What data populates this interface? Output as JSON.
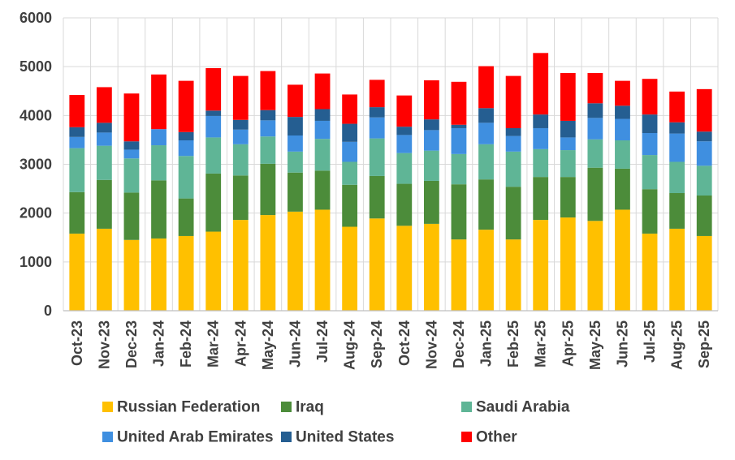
{
  "chart_data": {
    "type": "bar",
    "stacked": true,
    "title": "",
    "xlabel": "",
    "ylabel": "",
    "ylim": [
      0,
      6000
    ],
    "yticks": [
      0,
      1000,
      2000,
      3000,
      4000,
      5000,
      6000
    ],
    "grid": true,
    "legend_position": "bottom",
    "categories": [
      "Oct-23",
      "Nov-23",
      "Dec-23",
      "Jan-24",
      "Feb-24",
      "Mar-24",
      "Apr-24",
      "May-24",
      "Jun-24",
      "Jul-24",
      "Aug-24",
      "Sep-24",
      "Oct-24",
      "Nov-24",
      "Dec-24",
      "Jan-25",
      "Feb-25",
      "Mar-25",
      "Apr-25",
      "May-25",
      "Jun-25",
      "Jul-25",
      "Aug-25",
      "Sep-25"
    ],
    "series": [
      {
        "name": "Russian Federation",
        "color": "#FFC000",
        "values": [
          1580,
          1680,
          1450,
          1480,
          1530,
          1620,
          1860,
          1960,
          2030,
          2070,
          1720,
          1890,
          1740,
          1780,
          1460,
          1660,
          1460,
          1860,
          1910,
          1840,
          2070,
          1580,
          1680,
          1530
        ]
      },
      {
        "name": "Iraq",
        "color": "#4C8C3A",
        "values": [
          850,
          1000,
          970,
          1190,
          770,
          1190,
          910,
          1050,
          800,
          800,
          860,
          870,
          860,
          880,
          1130,
          1030,
          1080,
          880,
          830,
          1090,
          840,
          910,
          730,
          830
        ]
      },
      {
        "name": "Saudi Arabia",
        "color": "#5FB596",
        "values": [
          900,
          700,
          700,
          720,
          870,
          740,
          640,
          560,
          430,
          650,
          470,
          770,
          630,
          620,
          620,
          720,
          720,
          570,
          550,
          580,
          580,
          700,
          640,
          610
        ]
      },
      {
        "name": "United Arab Emirates",
        "color": "#3F8FE0",
        "values": [
          230,
          270,
          180,
          330,
          320,
          440,
          300,
          330,
          330,
          370,
          410,
          430,
          370,
          420,
          530,
          440,
          320,
          430,
          260,
          440,
          440,
          450,
          580,
          500
        ]
      },
      {
        "name": "United States",
        "color": "#255E91",
        "values": [
          200,
          200,
          170,
          0,
          170,
          110,
          200,
          210,
          380,
          240,
          370,
          210,
          170,
          220,
          70,
          300,
          160,
          280,
          340,
          300,
          270,
          380,
          230,
          200
        ]
      },
      {
        "name": "Other",
        "color": "#FF0000",
        "values": [
          660,
          730,
          980,
          1120,
          1050,
          870,
          900,
          800,
          660,
          730,
          600,
          560,
          640,
          800,
          880,
          860,
          1070,
          1260,
          980,
          620,
          510,
          730,
          630,
          870
        ]
      }
    ]
  }
}
